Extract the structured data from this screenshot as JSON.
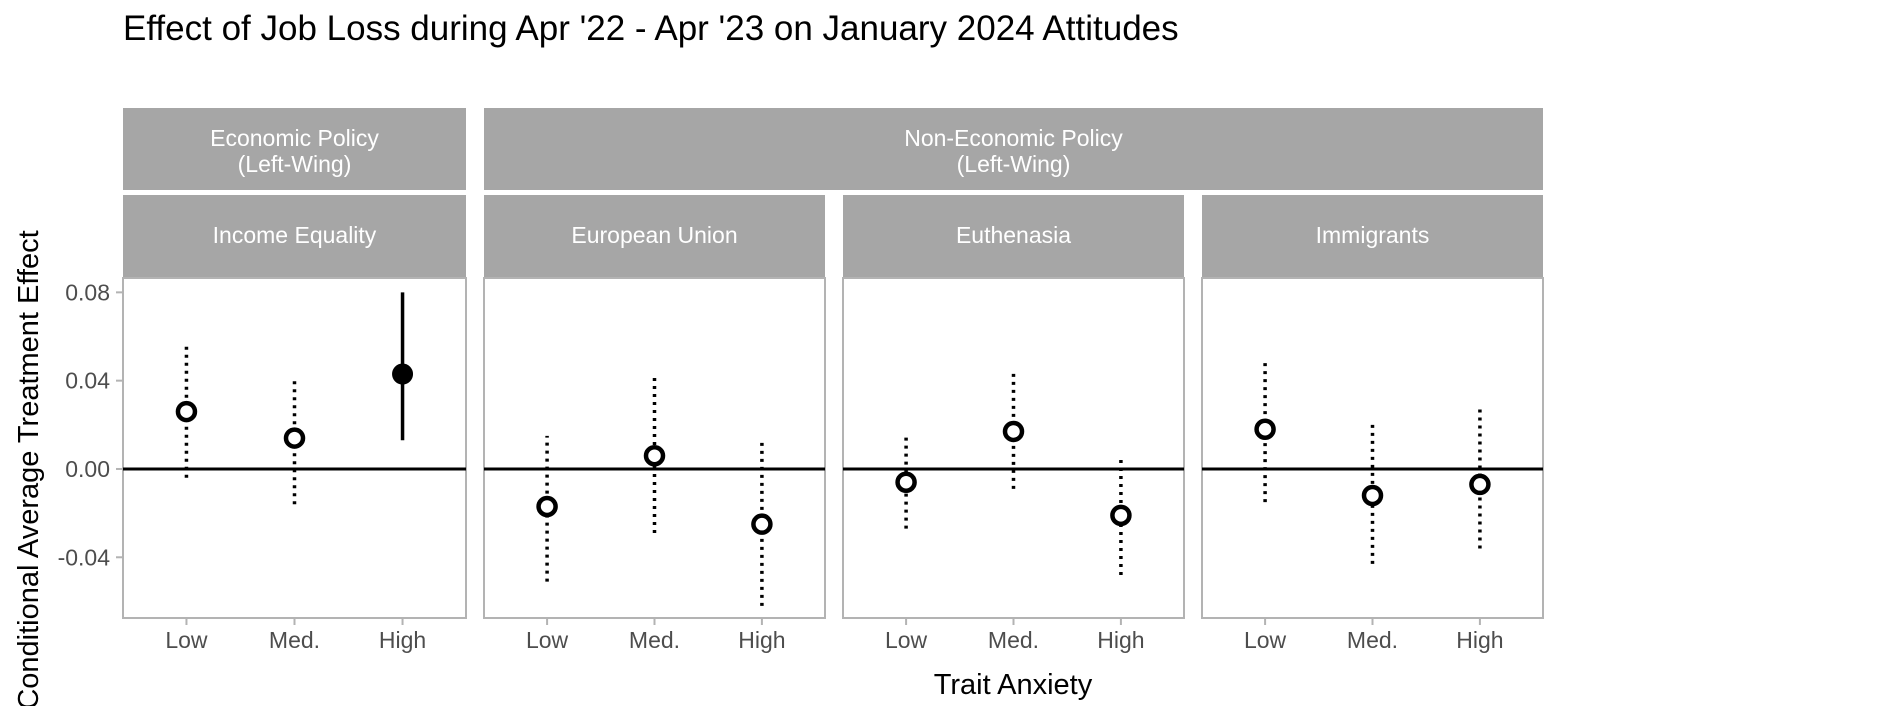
{
  "chart_data": {
    "type": "scatter",
    "title": "Effect of Job Loss during Apr '22 - Apr '23 on January 2024 Attitudes",
    "xlabel": "Trait Anxiety",
    "ylabel": "Conditional Average Treatment Effect",
    "categories": [
      "Low",
      "Med.",
      "High"
    ],
    "ylim": [
      -0.0675,
      0.0865
    ],
    "yticks": [
      0.08,
      0.04,
      0.0,
      -0.04
    ],
    "ytick_labels": [
      "0.08",
      "0.04",
      "0.00",
      "-0.04"
    ],
    "reference_line": 0,
    "grid": false,
    "groups": [
      {
        "label_line1": "Economic Policy",
        "label_line2": "(Left-Wing)",
        "panels": [
          0
        ]
      },
      {
        "label_line1": "Non-Economic Policy",
        "label_line2": "(Left-Wing)",
        "panels": [
          1,
          2,
          3
        ]
      }
    ],
    "panels": [
      {
        "name": "Income Equality",
        "points": [
          {
            "x": "Low",
            "estimate": 0.026,
            "lower": -0.004,
            "upper": 0.056,
            "significant": false
          },
          {
            "x": "Med.",
            "estimate": 0.014,
            "lower": -0.016,
            "upper": 0.041,
            "significant": false
          },
          {
            "x": "High",
            "estimate": 0.043,
            "lower": 0.013,
            "upper": 0.08,
            "significant": true
          }
        ]
      },
      {
        "name": "European Union",
        "points": [
          {
            "x": "Low",
            "estimate": -0.017,
            "lower": -0.051,
            "upper": 0.015,
            "significant": false
          },
          {
            "x": "Med.",
            "estimate": 0.006,
            "lower": -0.029,
            "upper": 0.043,
            "significant": false
          },
          {
            "x": "High",
            "estimate": -0.025,
            "lower": -0.062,
            "upper": 0.014,
            "significant": false
          }
        ]
      },
      {
        "name": "Euthenasia",
        "points": [
          {
            "x": "Low",
            "estimate": -0.006,
            "lower": -0.027,
            "upper": 0.016,
            "significant": false
          },
          {
            "x": "Med.",
            "estimate": 0.017,
            "lower": -0.009,
            "upper": 0.045,
            "significant": false
          },
          {
            "x": "High",
            "estimate": -0.021,
            "lower": -0.048,
            "upper": 0.005,
            "significant": false
          }
        ]
      },
      {
        "name": "Immigrants",
        "points": [
          {
            "x": "Low",
            "estimate": 0.018,
            "lower": -0.015,
            "upper": 0.049,
            "significant": false
          },
          {
            "x": "Med.",
            "estimate": -0.012,
            "lower": -0.043,
            "upper": 0.021,
            "significant": false
          },
          {
            "x": "High",
            "estimate": -0.007,
            "lower": -0.036,
            "upper": 0.028,
            "significant": false
          }
        ]
      }
    ]
  },
  "colors": {
    "strip_fill": "#a6a6a6",
    "strip_text": "#ffffff",
    "panel_border": "#b3b3b3",
    "marks": "#000000",
    "tick_text": "#4d4d4d"
  }
}
